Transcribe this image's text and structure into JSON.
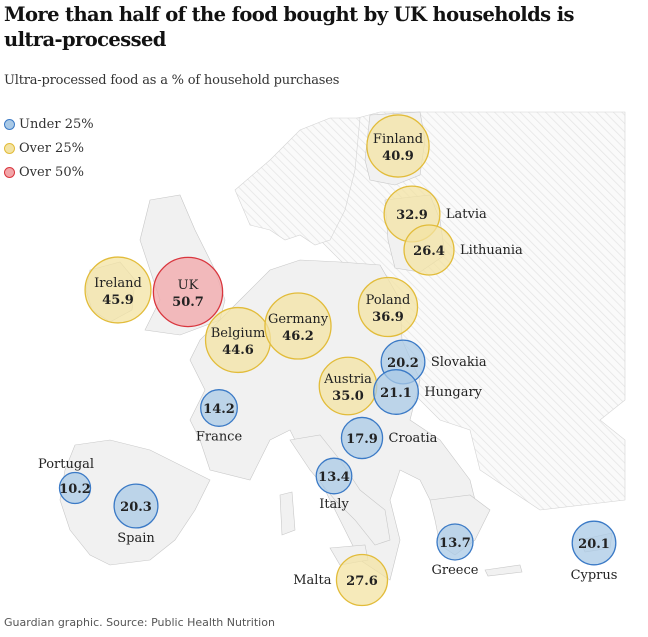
{
  "title": "More than half of the food bought by UK households is ultra-processed",
  "subtitle": "Ultra-processed food as a % of household purchases",
  "source": "Guardian graphic. Source: Public Health Nutrition",
  "legend": [
    {
      "label": "Under 25%",
      "fill": "#a9c9e6",
      "stroke": "#3b7ac6"
    },
    {
      "label": "Over 25%",
      "fill": "#f3e3a3",
      "stroke": "#e2bc3a"
    },
    {
      "label": "Over 50%",
      "fill": "#f2a5a8",
      "stroke": "#d9363e"
    }
  ],
  "colors": {
    "land": "#f1f1f1",
    "border": "#c8c8c8",
    "hatch": "#e6e6e6"
  },
  "chart_data": {
    "type": "bubble-map",
    "title": "More than half of the food bought by UK households is ultra-processed",
    "subtitle": "Ultra-processed food as a % of household purchases",
    "unit": "% of household purchases",
    "thresholds": [
      25,
      50
    ],
    "countries": [
      {
        "name": "Finland",
        "value": 40.9,
        "category": "Over 25%",
        "label_position": "inside"
      },
      {
        "name": "Latvia",
        "value": 32.9,
        "category": "Over 25%",
        "label_position": "right"
      },
      {
        "name": "Lithuania",
        "value": 26.4,
        "category": "Over 25%",
        "label_position": "right"
      },
      {
        "name": "Ireland",
        "value": 45.9,
        "category": "Over 25%",
        "label_position": "inside"
      },
      {
        "name": "UK",
        "value": 50.7,
        "category": "Over 50%",
        "label_position": "inside"
      },
      {
        "name": "Belgium",
        "value": 44.6,
        "category": "Over 25%",
        "label_position": "inside"
      },
      {
        "name": "Germany",
        "value": 46.2,
        "category": "Over 25%",
        "label_position": "inside"
      },
      {
        "name": "Poland",
        "value": 36.9,
        "category": "Over 25%",
        "label_position": "inside"
      },
      {
        "name": "Slovakia",
        "value": 20.2,
        "category": "Under 25%",
        "label_position": "right"
      },
      {
        "name": "Austria",
        "value": 35.0,
        "category": "Over 25%",
        "label_position": "inside"
      },
      {
        "name": "Hungary",
        "value": 21.1,
        "category": "Under 25%",
        "label_position": "right"
      },
      {
        "name": "France",
        "value": 14.2,
        "category": "Under 25%",
        "label_position": "below"
      },
      {
        "name": "Croatia",
        "value": 17.9,
        "category": "Under 25%",
        "label_position": "right"
      },
      {
        "name": "Portugal",
        "value": 10.2,
        "category": "Under 25%",
        "label_position": "above-left"
      },
      {
        "name": "Spain",
        "value": 20.3,
        "category": "Under 25%",
        "label_position": "below"
      },
      {
        "name": "Italy",
        "value": 13.4,
        "category": "Under 25%",
        "label_position": "below"
      },
      {
        "name": "Greece",
        "value": 13.7,
        "category": "Under 25%",
        "label_position": "below"
      },
      {
        "name": "Cyprus",
        "value": 20.1,
        "category": "Under 25%",
        "label_position": "below"
      },
      {
        "name": "Malta",
        "value": 27.6,
        "category": "Over 25%",
        "label_position": "left"
      }
    ]
  }
}
